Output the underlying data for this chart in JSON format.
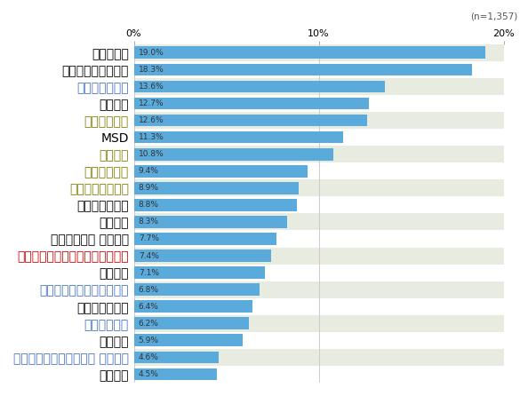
{
  "title": "(n=1,357)",
  "categories": [
    "アッヴィ",
    "ブリストル・マイヤーズ スクイブ",
    "中外製薬",
    "バイエル薬品",
    "旭化成ファーマ",
    "グラクソ・スミスクライン",
    "第一三共",
    "日本ベーリンガーインゲルハイム",
    "ノバルティス ファーマ",
    "サノフィ",
    "アステラス製薬",
    "ヤンセンファーマ",
    "小野薬品工業",
    "大塚製薬",
    "MSD",
    "武田薬品工業",
    "エーザイ",
    "アストラゼネカ",
    "日本イーライリリー",
    "ファイザー"
  ],
  "values": [
    4.5,
    4.6,
    5.9,
    6.2,
    6.4,
    6.8,
    7.1,
    7.4,
    7.7,
    8.3,
    8.8,
    8.9,
    9.4,
    10.8,
    11.3,
    12.6,
    12.7,
    13.6,
    18.3,
    19.0
  ],
  "label_colors": [
    "#000000",
    "#4472c4",
    "#000000",
    "#4472c4",
    "#000000",
    "#4472c4",
    "#000000",
    "#cc0000",
    "#000000",
    "#000000",
    "#000000",
    "#808000",
    "#808000",
    "#808000",
    "#000000",
    "#808000",
    "#000000",
    "#4472c4",
    "#000000",
    "#000000"
  ],
  "bar_color": "#5baadc",
  "bg_color_odd": "#e8ece0",
  "bg_color_even": "#ffffff",
  "xlim": [
    0,
    20
  ],
  "xticks": [
    0,
    10,
    20
  ],
  "xticklabels": [
    "0%",
    "10%",
    "20%"
  ],
  "figsize": [
    5.94,
    4.46
  ],
  "dpi": 100
}
